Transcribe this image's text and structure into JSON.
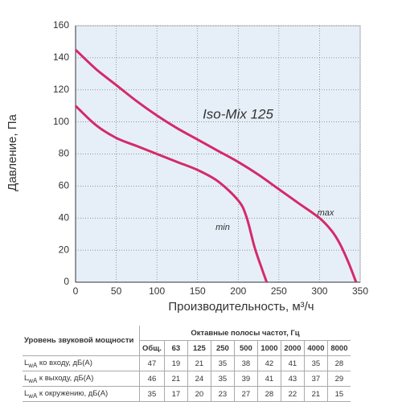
{
  "chart_data": {
    "type": "line",
    "title": "Iso-Mix 125",
    "x_label": "Производительность, м³/ч",
    "y_label": "Давление, Па",
    "xlim": [
      0,
      350
    ],
    "xticks": [
      0,
      50,
      100,
      150,
      200,
      250,
      300,
      350
    ],
    "ylim": [
      0,
      160
    ],
    "yticks": [
      0,
      20,
      40,
      60,
      80,
      100,
      120,
      140,
      160
    ],
    "grid": true,
    "series": [
      {
        "name": "max",
        "color": "#d42a6a",
        "x": [
          0,
          25,
          50,
          75,
          100,
          125,
          150,
          175,
          200,
          225,
          250,
          275,
          300,
          315,
          325,
          335,
          345
        ],
        "values": [
          145,
          133,
          123,
          113,
          104,
          96,
          89,
          82,
          75,
          67,
          58,
          49,
          40,
          32,
          24,
          13,
          0
        ]
      },
      {
        "name": "min",
        "color": "#d42a6a",
        "x": [
          0,
          25,
          50,
          75,
          100,
          125,
          150,
          175,
          200,
          210,
          220,
          228,
          235
        ],
        "values": [
          110,
          98,
          90,
          85,
          80,
          75,
          70,
          63,
          51,
          41,
          22,
          10,
          0
        ]
      }
    ]
  },
  "table": {
    "header": {
      "label": "Уровень звуковой мощности",
      "group": "Октавные полосы частот, Гц",
      "columns": [
        "Общ.",
        "63",
        "125",
        "250",
        "500",
        "1000",
        "2000",
        "4000",
        "8000"
      ]
    },
    "rows": [
      {
        "symbol": "L",
        "sub": "wA",
        "text": " ко входу, дБ(А)",
        "cells": [
          "47",
          "19",
          "21",
          "35",
          "38",
          "42",
          "41",
          "35",
          "28"
        ]
      },
      {
        "symbol": "L",
        "sub": "wA",
        "text": " к выходу, дБ(А)",
        "cells": [
          "46",
          "21",
          "24",
          "35",
          "39",
          "41",
          "43",
          "37",
          "29"
        ]
      },
      {
        "symbol": "L",
        "sub": "wA",
        "text": " к окружению, дБ(А)",
        "cells": [
          "35",
          "17",
          "20",
          "23",
          "27",
          "28",
          "22",
          "21",
          "15"
        ]
      }
    ]
  }
}
